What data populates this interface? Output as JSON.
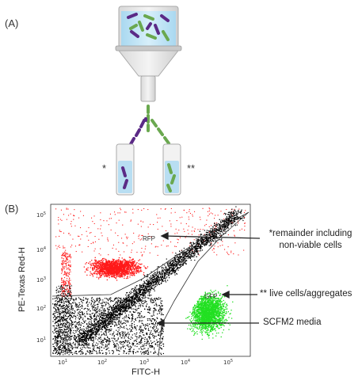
{
  "panel_a": {
    "label": "(A)",
    "left_tube_marker": "*",
    "right_tube_marker": "**",
    "colors": {
      "purple": "#5b2a86",
      "green": "#6aa84f",
      "tube_fill": "#cfe8f7"
    }
  },
  "panel_b": {
    "label": "(B)",
    "x_axis_title": "FITC-H",
    "y_axis_title": "PE-Texas Red-H",
    "x_ticks": [
      "10^1",
      "10^2",
      "10^3",
      "10^4",
      "10^5"
    ],
    "y_ticks": [
      "10^1",
      "10^2",
      "10^3",
      "10^4",
      "10^5"
    ],
    "gate_rfp": "RFP",
    "gate_gfp": "GFP",
    "annotations": {
      "top_line1": "*remainder including",
      "top_line2": "non-viable cells",
      "live": "** live cells/aggregates",
      "media": "SCFM2 media"
    },
    "colors": {
      "red": "#ff1a1a",
      "green": "#22e022",
      "black": "#000000"
    }
  }
}
